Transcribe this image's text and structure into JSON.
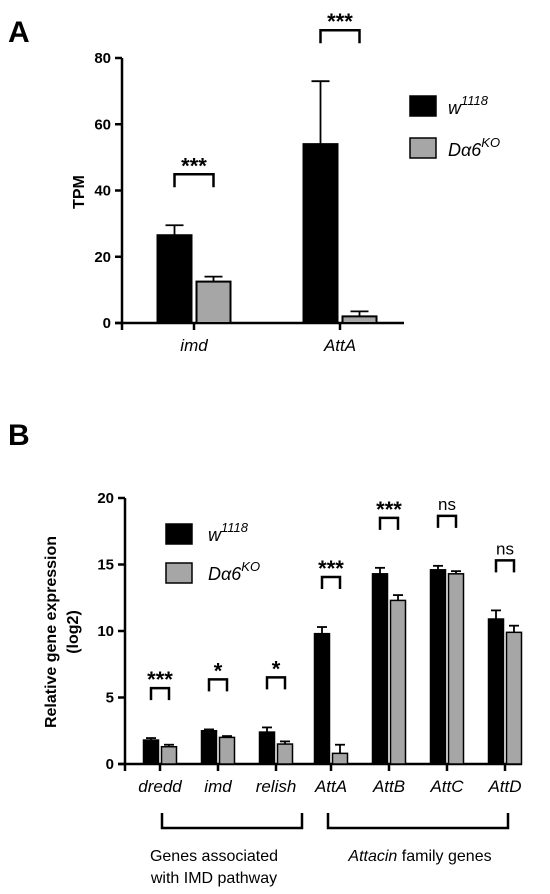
{
  "colors": {
    "w1118": "#000000",
    "KO": "#a6a6a6"
  },
  "chart_data": [
    {
      "panel": "A",
      "type": "bar",
      "ylabel": "TPM",
      "ylim": [
        0,
        80
      ],
      "yticks": [
        0,
        20,
        40,
        60,
        80
      ],
      "categories": [
        "imd",
        "AttA"
      ],
      "series": [
        {
          "name": "w",
          "sup": "1118",
          "values": [
            26.5,
            54
          ],
          "errors": [
            3,
            19
          ]
        },
        {
          "name": "Dα6",
          "sup": "KO",
          "values": [
            12.5,
            2
          ],
          "errors": [
            1.5,
            1.5
          ]
        }
      ],
      "significance": [
        "***",
        "***"
      ],
      "legend_position": "right"
    },
    {
      "panel": "B",
      "type": "bar",
      "ylabel_line1": "Relative gene expression",
      "ylabel_line2": "(log2)",
      "ylim": [
        0,
        20
      ],
      "yticks": [
        0,
        5,
        10,
        15,
        20
      ],
      "categories": [
        "dredd",
        "imd",
        "relish",
        "AttA",
        "AttB",
        "AttC",
        "AttD"
      ],
      "series": [
        {
          "name": "w",
          "sup": "1118",
          "values": [
            1.8,
            2.5,
            2.4,
            9.8,
            14.3,
            14.6,
            10.9
          ],
          "errors": [
            0.15,
            0.1,
            0.35,
            0.5,
            0.45,
            0.3,
            0.65
          ]
        },
        {
          "name": "Dα6",
          "sup": "KO",
          "values": [
            1.3,
            2.0,
            1.5,
            0.8,
            12.3,
            14.3,
            9.9
          ],
          "errors": [
            0.15,
            0.1,
            0.2,
            0.65,
            0.4,
            0.2,
            0.5
          ]
        }
      ],
      "significance": [
        "***",
        "*",
        "*",
        "***",
        "***",
        "ns",
        "ns"
      ],
      "group_labels": {
        "imd_group_line1": "Genes associated",
        "imd_group_line2": "with IMD pathway",
        "attacin_italic": "Attacin",
        "attacin_rest": " family genes"
      },
      "legend_position": "top-left"
    }
  ]
}
